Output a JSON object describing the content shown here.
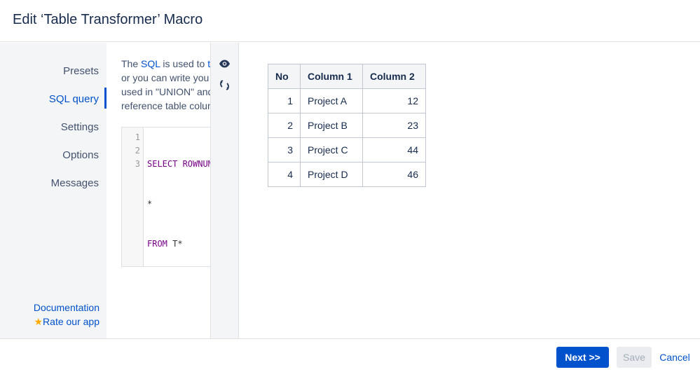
{
  "dialog": {
    "title": "Edit ‘Table Transformer’ Macro"
  },
  "sidebar": {
    "items": [
      {
        "label": "Presets"
      },
      {
        "label": "SQL query"
      },
      {
        "label": "Settings"
      },
      {
        "label": "Options"
      },
      {
        "label": "Messages"
      }
    ],
    "documentation": "Documentation",
    "rate": "Rate our app"
  },
  "content": {
    "desc": {
      "l1a": "The ",
      "l1link": "SQL",
      "l1b": " is used to ",
      "l1link2": "tr",
      "l2": "or you can write you",
      "l3": "used in \"UNION\" and",
      "l4": "reference table colum"
    },
    "code": {
      "line_numbers": [
        "1",
        "2",
        "3"
      ],
      "l1": "SELECT ROWNUM",
      "l2": "*",
      "l3kw": "FROM",
      "l3": " T*"
    }
  },
  "tools": {
    "preview_icon": "eye-icon",
    "refresh_icon": "refresh-icon"
  },
  "preview": {
    "headers": [
      "No",
      "Column 1",
      "Column 2"
    ],
    "rows": [
      [
        "1",
        "Project A",
        "12"
      ],
      [
        "2",
        "Project B",
        "23"
      ],
      [
        "3",
        "Project C",
        "44"
      ],
      [
        "4",
        "Project D",
        "46"
      ]
    ]
  },
  "footer": {
    "next": "Next >>",
    "save": "Save",
    "cancel": "Cancel"
  },
  "colors": {
    "accent": "#0052cc",
    "star": "#ffab00"
  }
}
